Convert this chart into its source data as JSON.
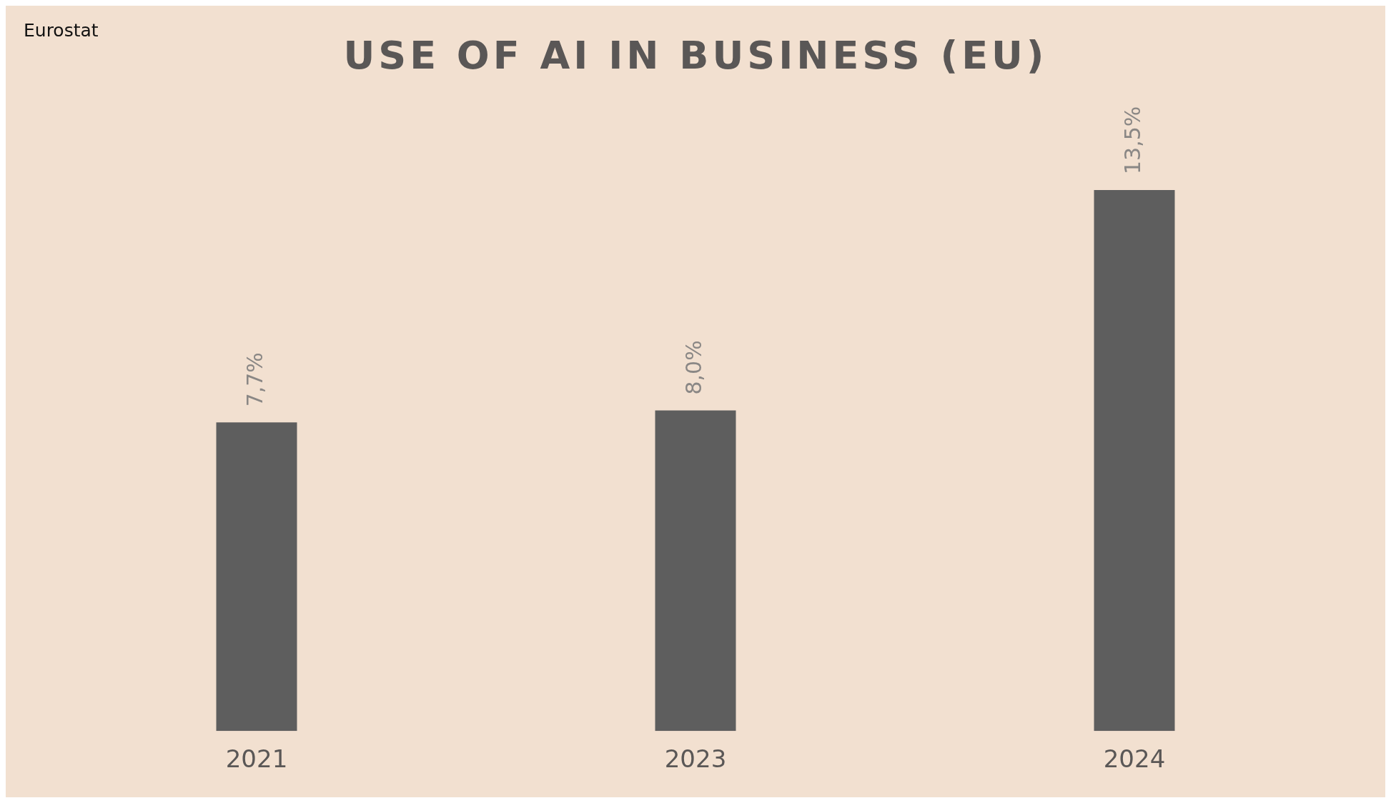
{
  "chart_data": {
    "type": "bar",
    "title": "USE OF AI IN BUSINESS (EU)",
    "categories": [
      "2021",
      "2023",
      "2024"
    ],
    "values": [
      7.7,
      8.0,
      13.5
    ],
    "value_labels": [
      "7,7%",
      "8,0%",
      "13,5%"
    ],
    "color": "#5e5e5e",
    "annotations": [
      "Eurostat"
    ],
    "grid": false,
    "legend": false
  }
}
